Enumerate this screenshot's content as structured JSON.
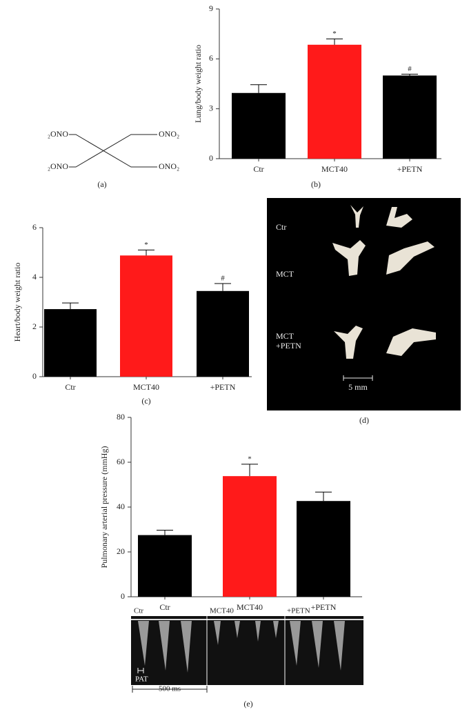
{
  "chart_data": [
    {
      "type": "bar",
      "caption": "(b)",
      "ylabel": "Lung/body weight ratio",
      "categories": [
        "Ctr",
        "MCT40",
        "+PETN"
      ],
      "values": [
        3.95,
        6.85,
        5.0
      ],
      "errors": [
        0.5,
        0.35,
        0.08
      ],
      "annotations": [
        null,
        "*",
        "#"
      ],
      "colors": [
        "#000000",
        "#ff1a1a",
        "#000000"
      ],
      "ylim": [
        0,
        9
      ],
      "yticks": [
        0,
        3,
        6,
        9
      ]
    },
    {
      "type": "bar",
      "caption": "(c)",
      "ylabel": "Heart/body weight ratio",
      "categories": [
        "Ctr",
        "MCT40",
        "+PETN"
      ],
      "values": [
        2.72,
        4.88,
        3.45
      ],
      "errors": [
        0.25,
        0.22,
        0.3
      ],
      "annotations": [
        null,
        "*",
        "#"
      ],
      "colors": [
        "#000000",
        "#ff1a1a",
        "#000000"
      ],
      "ylim": [
        0,
        6
      ],
      "yticks": [
        0,
        2,
        4,
        6
      ]
    },
    {
      "type": "bar",
      "caption": "(e)",
      "ylabel": "Pulmonary arterial pressure (mmHg)",
      "categories": [
        "Ctr",
        "MCT40",
        "+PETN"
      ],
      "values": [
        27.5,
        53.8,
        42.7
      ],
      "errors": [
        2.2,
        5.3,
        4.0
      ],
      "annotations": [
        null,
        "*",
        null
      ],
      "colors": [
        "#000000",
        "#ff1a1a",
        "#000000"
      ],
      "ylim": [
        0,
        80
      ],
      "yticks": [
        0,
        20,
        40,
        60,
        80
      ]
    }
  ],
  "structure": {
    "left_top": "₂ONO",
    "left_bottom": "₂ONO",
    "right_top": "ONO₂",
    "right_bottom": "ONO₂",
    "caption": "(a)"
  },
  "photo": {
    "labels": [
      "Ctr",
      "MCT",
      "MCT",
      "+PETN"
    ],
    "scale": "5 mm",
    "caption": "(d)"
  },
  "doppler": {
    "labels": [
      "Ctr",
      "MCT40",
      "+PETN"
    ],
    "pat": "PAT",
    "scale": "500 ms"
  }
}
